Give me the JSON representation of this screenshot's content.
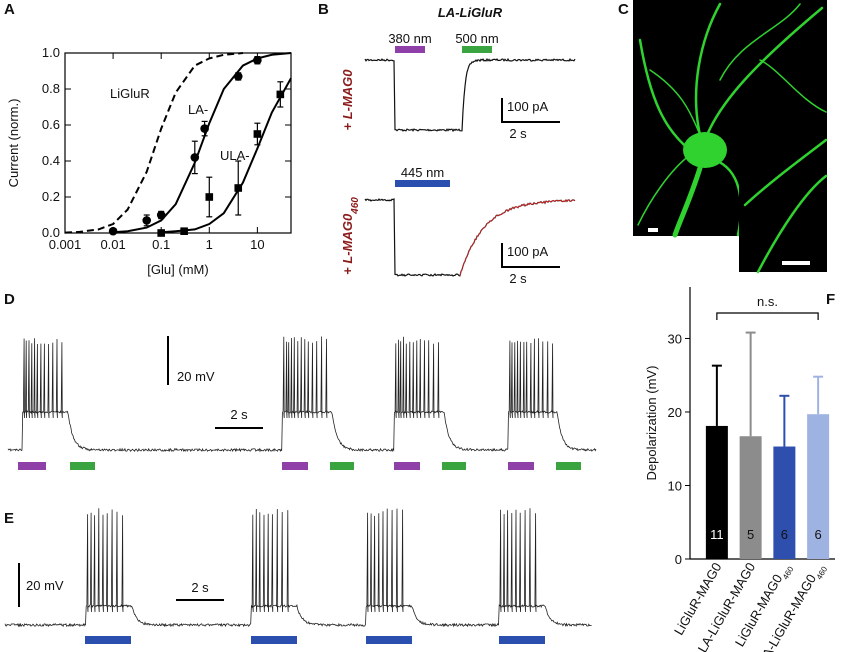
{
  "panel_labels": [
    "A",
    "B",
    "C",
    "D",
    "E",
    "F"
  ],
  "chart_data": [
    {
      "type": "dose-response",
      "ylabel": "Current (norm.)",
      "xlabel": "[Glu] (mM)",
      "xscale": "log",
      "xlim": [
        0.001,
        50
      ],
      "xticks": [
        0.001,
        0.01,
        0.1,
        1,
        10
      ],
      "ylim": [
        0,
        1
      ],
      "yticks": [
        {
          "value": 0,
          "label": "0.0"
        },
        0.2,
        0.4,
        0.6,
        0.8,
        {
          "value": 1,
          "label": "1.0"
        }
      ],
      "fit_x": [
        0.001,
        0.002,
        0.005,
        0.01,
        0.02,
        0.05,
        0.1,
        0.2,
        0.5,
        1,
        2,
        5,
        10,
        20,
        50
      ],
      "series": [
        {
          "name": "LiGluR",
          "color": "#000000",
          "dashed": true,
          "fit": [
            0.002,
            0.006,
            0.02,
            0.05,
            0.13,
            0.34,
            0.58,
            0.78,
            0.93,
            0.97,
            0.99,
            1.0,
            null,
            null,
            null
          ]
        },
        {
          "name": "LA-",
          "color": "#000000",
          "marker": "circle",
          "x": [
            0.01,
            0.05,
            0.1,
            0.5,
            0.8,
            4,
            10
          ],
          "values": [
            0.01,
            0.07,
            0.1,
            0.42,
            0.58,
            0.87,
            0.96
          ],
          "errors": [
            0.01,
            0.03,
            0.02,
            0.09,
            0.04,
            0.02,
            0.02
          ],
          "fit": [
            null,
            null,
            null,
            0.004,
            0.01,
            0.03,
            0.07,
            0.16,
            0.39,
            0.61,
            0.8,
            0.93,
            0.97,
            0.99,
            1.0
          ]
        },
        {
          "name": "ULA-",
          "color": "#000000",
          "marker": "square",
          "x": [
            0.1,
            0.3,
            1,
            4,
            10,
            30
          ],
          "values": [
            0.0,
            0.01,
            0.2,
            0.25,
            0.55,
            0.77
          ],
          "errors": [
            0.01,
            0.01,
            0.11,
            0.15,
            0.06,
            0.07
          ],
          "fit": [
            null,
            null,
            null,
            null,
            null,
            null,
            0.004,
            0.01,
            0.02,
            0.05,
            0.11,
            0.28,
            0.47,
            0.67,
            0.86
          ]
        }
      ]
    },
    {
      "type": "bar",
      "ylabel": "Depolarization (mV)",
      "categories": [
        "LiGluR-MAG0",
        "LA-LiGluR-MAG0",
        "LiGluR-MAG0",
        "LA-LiGluR-MAG0"
      ],
      "category_subscripts": [
        null,
        null,
        "460",
        "460"
      ],
      "values": [
        18.1,
        16.7,
        15.3,
        19.7
      ],
      "errors": [
        8.2,
        14.1,
        6.9,
        5.1
      ],
      "colors": [
        "#000000",
        "#8c8c8c",
        "#2e4fae",
        "#9fb3e3"
      ],
      "n_labels": [
        "11",
        "5",
        "6",
        "6"
      ],
      "annotation": "n.s.",
      "ylim": [
        0,
        37
      ],
      "yticks": [
        0,
        10,
        20,
        30
      ]
    }
  ],
  "panel_b": {
    "title": "LA-LiGluR",
    "rows": [
      {
        "condition": "+ L-MAG0",
        "lights": [
          {
            "label": "380 nm",
            "color": "#8e3fa8"
          },
          {
            "label": "500 nm",
            "color": "#3aa441"
          }
        ],
        "current_scale": "100 pA",
        "time_scale": "2 s"
      },
      {
        "condition": "+ L-MAG0",
        "condition_subscript": "460",
        "lights": [
          {
            "label": "445 nm",
            "color": "#2b4fae"
          }
        ],
        "current_scale": "100 pA",
        "time_scale": "2 s"
      }
    ]
  },
  "panel_d": {
    "voltage_scale": "20 mV",
    "time_scale": "2 s"
  },
  "panel_e": {
    "voltage_scale": "20 mV",
    "time_scale": "2 s"
  }
}
